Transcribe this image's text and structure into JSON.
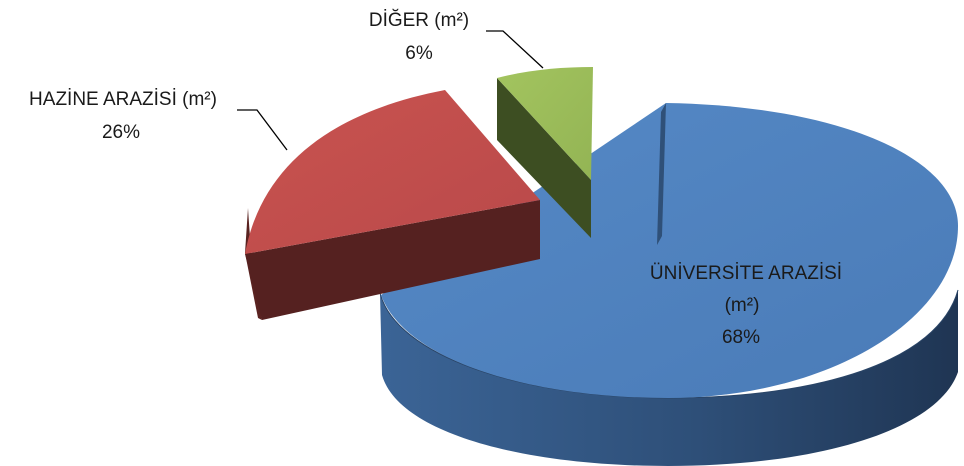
{
  "chart_data": {
    "type": "pie",
    "variant": "3d-exploded",
    "title": "",
    "slices": [
      {
        "label_line1": "ÜNİVERSİTE ARAZİSİ",
        "label_line2": "(m²)",
        "percent_label": "68%",
        "value": 68,
        "color": "#4f81bd"
      },
      {
        "label_line1": "HAZİNE ARAZİSİ  (m²)",
        "label_line2": "",
        "percent_label": "26%",
        "value": 26,
        "color": "#c0504d"
      },
      {
        "label_line1": "DİĞER  (m²)",
        "label_line2": "",
        "percent_label": "6%",
        "value": 6,
        "color": "#9bbb59"
      }
    ]
  }
}
